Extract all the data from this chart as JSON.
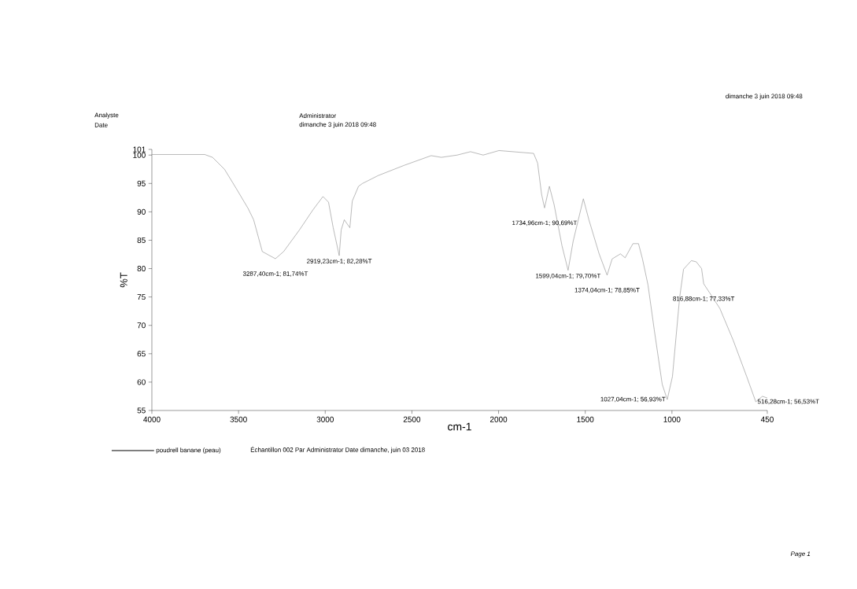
{
  "chart_data": {
    "type": "line",
    "xlabel": "cm-1",
    "ylabel": "%T",
    "xlim": [
      4000,
      450
    ],
    "ylim": [
      55,
      101
    ],
    "xticks": [
      4000,
      3500,
      3000,
      2500,
      2000,
      1500,
      1000,
      450
    ],
    "yticks": [
      55,
      60,
      65,
      70,
      75,
      80,
      85,
      90,
      95,
      100,
      101
    ],
    "x": [
      4000,
      3695,
      3650,
      3581,
      3513,
      3445,
      3413,
      3363,
      3287.4,
      3240,
      3149,
      3072,
      3013,
      2981,
      2954,
      2919.23,
      2908,
      2890,
      2858,
      2844,
      2808,
      2785,
      2694,
      2544,
      2389,
      2330,
      2239,
      2162,
      2089,
      1998,
      1798,
      1775,
      1752,
      1734.96,
      1707,
      1680,
      1634,
      1599.04,
      1570,
      1511,
      1479,
      1420,
      1374.04,
      1345,
      1297,
      1270,
      1225,
      1193,
      1170,
      1138,
      1102,
      1056,
      1027.04,
      997,
      956,
      933,
      888,
      860,
      829,
      816.88,
      724,
      647,
      569,
      516.28,
      478,
      450
    ],
    "series": [
      {
        "name": "poudrell banane (peau)",
        "color": "#8c8c8c",
        "values": [
          100.1,
          100.1,
          99.6,
          97.5,
          94.1,
          90.6,
          88.6,
          83.0,
          81.74,
          83.0,
          86.8,
          90.3,
          92.7,
          91.7,
          87.2,
          82.28,
          86.8,
          88.6,
          87.2,
          91.9,
          94.5,
          95.0,
          96.4,
          98.2,
          99.9,
          99.6,
          100.0,
          100.6,
          100.0,
          100.8,
          100.3,
          98.6,
          93.1,
          90.69,
          94.5,
          91.3,
          84.0,
          79.7,
          84.8,
          92.3,
          88.6,
          82.6,
          78.85,
          81.7,
          82.6,
          81.9,
          84.4,
          84.4,
          81.7,
          77.1,
          69.2,
          59.6,
          56.93,
          61.0,
          74.8,
          79.9,
          81.4,
          81.2,
          80.0,
          77.33,
          73.0,
          67.4,
          61.0,
          56.53,
          57.5,
          57.2
        ]
      }
    ],
    "legend": "bottom left",
    "annotations": [
      "Analyste",
      "Date",
      "Administrator",
      "dimanche 3 juin 2018 09:48",
      "dimanche 3 juin 2018 09:48",
      "Échantillon 002 Par Administrator Date dimanche, juin 03 2018",
      "Page 1",
      {
        "text": "3287,40cm-1; 81,74%T",
        "x": 3287.4,
        "y": 81.74
      },
      {
        "text": "2919,23cm-1; 82,28%T",
        "x": 2919.23,
        "y": 82.28
      },
      {
        "text": "1734,96cm-1; 90,69%T",
        "x": 1734.96,
        "y": 90.69
      },
      {
        "text": "1599,04cm-1; 79,70%T",
        "x": 1599.04,
        "y": 79.7
      },
      {
        "text": "1374,04cm-1; 78,85%T",
        "x": 1374.04,
        "y": 78.85
      },
      {
        "text": "1027,04cm-1; 56,93%T",
        "x": 1027.04,
        "y": 56.93
      },
      {
        "text": "816,88cm-1; 77,33%T",
        "x": 816.88,
        "y": 77.33
      },
      {
        "text": "516,28cm-1; 56,53%T",
        "x": 516.28,
        "y": 56.53
      }
    ]
  }
}
